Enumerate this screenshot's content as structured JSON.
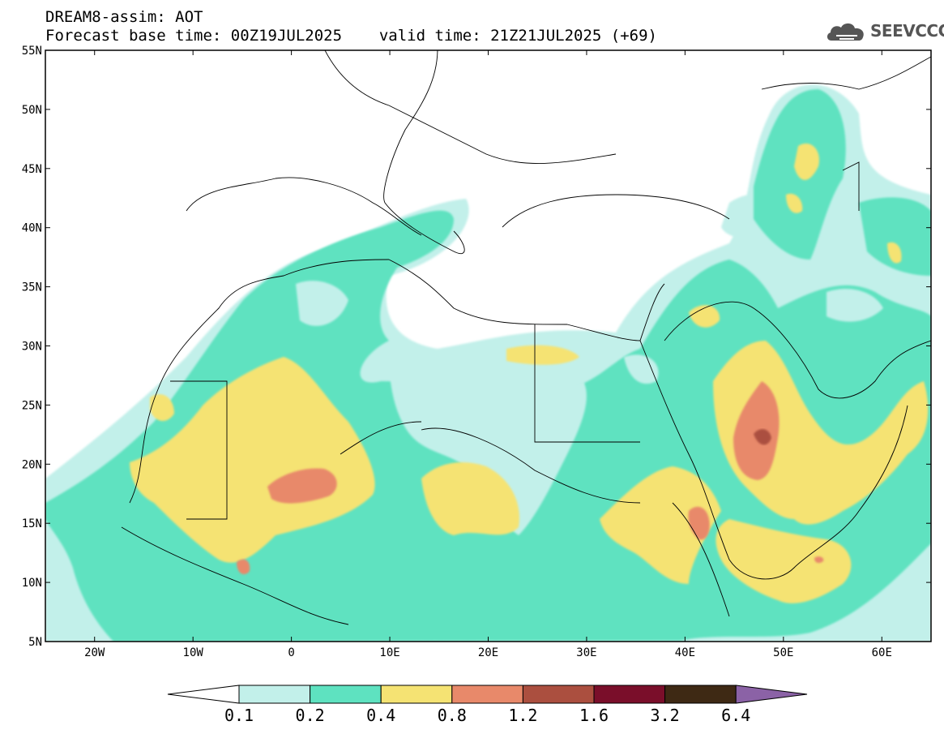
{
  "header": {
    "model_title": "DREAM8-assim: AOT",
    "forecast_base": "Forecast base time: 00Z19JUL2025",
    "valid_time": "valid time: 21Z21JUL2025 (+69)"
  },
  "logo": {
    "text": "SEEVCCC",
    "icon": "cloud-icon"
  },
  "map": {
    "projection": "lat-lon",
    "lon_range": [
      -25,
      65
    ],
    "lat_range": [
      5,
      55
    ],
    "lat_ticks": [
      "5N",
      "10N",
      "15N",
      "20N",
      "25N",
      "30N",
      "35N",
      "40N",
      "45N",
      "50N",
      "55N"
    ],
    "lon_ticks": [
      "20W",
      "10W",
      "0",
      "10E",
      "20E",
      "30E",
      "40E",
      "50E",
      "60E"
    ]
  },
  "legend": {
    "labels": [
      "0.1",
      "0.2",
      "0.4",
      "0.8",
      "1.2",
      "1.6",
      "3.2",
      "6.4"
    ],
    "colors": [
      "#ffffff",
      "#c2f0ea",
      "#5ee2c0",
      "#f5e373",
      "#e8896a",
      "#ab4f3f",
      "#7a0e2a",
      "#3e2914",
      "#8b62a6"
    ]
  }
}
